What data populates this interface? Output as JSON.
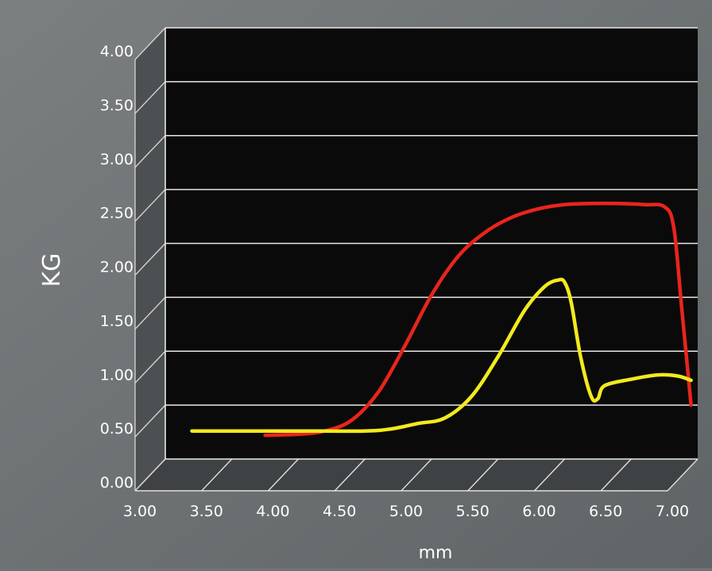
{
  "chart_data": {
    "type": "line",
    "title": "",
    "xlabel": "mm",
    "ylabel": "KG",
    "xlim": [
      3.0,
      7.0
    ],
    "ylim": [
      0.0,
      4.0
    ],
    "x_ticks": [
      "3.00",
      "3.50",
      "4.00",
      "4.50",
      "5.00",
      "5.50",
      "6.00",
      "6.50",
      "7.00"
    ],
    "y_ticks": [
      "0.00",
      "0.50",
      "1.00",
      "1.50",
      "2.00",
      "2.50",
      "3.00",
      "3.50",
      "4.00"
    ],
    "grid": true,
    "legend": "none",
    "series": [
      {
        "color": "#e8251c",
        "x": [
          3.75,
          4.0,
          4.2,
          4.4,
          4.6,
          4.8,
          5.0,
          5.2,
          5.4,
          5.6,
          5.8,
          6.0,
          6.2,
          6.4,
          6.6,
          6.75,
          6.82,
          6.88,
          6.95
        ],
        "y": [
          0.22,
          0.23,
          0.26,
          0.36,
          0.62,
          1.05,
          1.52,
          1.88,
          2.1,
          2.24,
          2.32,
          2.36,
          2.37,
          2.37,
          2.36,
          2.34,
          2.15,
          1.4,
          0.5
        ]
      },
      {
        "color": "#f2ea1e",
        "x": [
          3.2,
          3.5,
          4.0,
          4.5,
          4.7,
          4.9,
          5.1,
          5.3,
          5.5,
          5.7,
          5.85,
          5.95,
          6.0,
          6.05,
          6.12,
          6.2,
          6.25,
          6.3,
          6.5,
          6.7,
          6.85,
          6.95
        ],
        "y": [
          0.26,
          0.26,
          0.26,
          0.26,
          0.28,
          0.33,
          0.38,
          0.58,
          0.95,
          1.38,
          1.6,
          1.66,
          1.64,
          1.45,
          0.95,
          0.58,
          0.56,
          0.68,
          0.74,
          0.78,
          0.77,
          0.73
        ]
      }
    ]
  }
}
